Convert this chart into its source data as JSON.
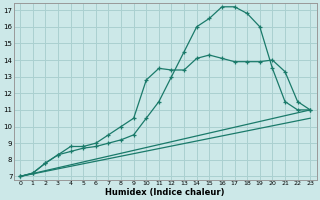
{
  "xlabel": "Humidex (Indice chaleur)",
  "bg_color": "#cce8e8",
  "grid_color": "#aad0d0",
  "line_color": "#1a7a6a",
  "xlim": [
    -0.5,
    23.5
  ],
  "ylim": [
    6.8,
    17.4
  ],
  "xticks": [
    0,
    1,
    2,
    3,
    4,
    5,
    6,
    7,
    8,
    9,
    10,
    11,
    12,
    13,
    14,
    15,
    16,
    17,
    18,
    19,
    20,
    21,
    22,
    23
  ],
  "yticks": [
    7,
    8,
    9,
    10,
    11,
    12,
    13,
    14,
    15,
    16,
    17
  ],
  "line_steep": {
    "x": [
      0,
      1,
      2,
      3,
      4,
      5,
      6,
      7,
      8,
      9,
      10,
      11,
      12,
      13,
      14,
      15,
      16,
      17,
      18,
      19,
      20,
      21,
      22,
      23
    ],
    "y": [
      7,
      7.2,
      7.8,
      8.3,
      8.5,
      8.7,
      8.8,
      9.0,
      9.2,
      9.5,
      10.5,
      11.5,
      13.0,
      14.5,
      16.0,
      16.5,
      17.2,
      17.2,
      16.8,
      16.0,
      13.5,
      11.5,
      11.0,
      11.0
    ]
  },
  "line_medium": {
    "x": [
      0,
      1,
      2,
      3,
      4,
      5,
      6,
      7,
      8,
      9,
      10,
      11,
      12,
      13,
      14,
      15,
      16,
      17,
      18,
      19,
      20,
      21,
      22,
      23
    ],
    "y": [
      7,
      7.2,
      7.8,
      8.3,
      8.8,
      8.8,
      9.0,
      9.5,
      10.0,
      10.5,
      12.8,
      13.5,
      13.4,
      13.4,
      14.1,
      14.3,
      14.1,
      13.9,
      13.9,
      13.9,
      14.0,
      13.3,
      11.5,
      11.0
    ]
  },
  "line_diag1": {
    "x": [
      0,
      23
    ],
    "y": [
      7,
      11.0
    ]
  },
  "line_diag2": {
    "x": [
      0,
      23
    ],
    "y": [
      7,
      10.5
    ]
  }
}
